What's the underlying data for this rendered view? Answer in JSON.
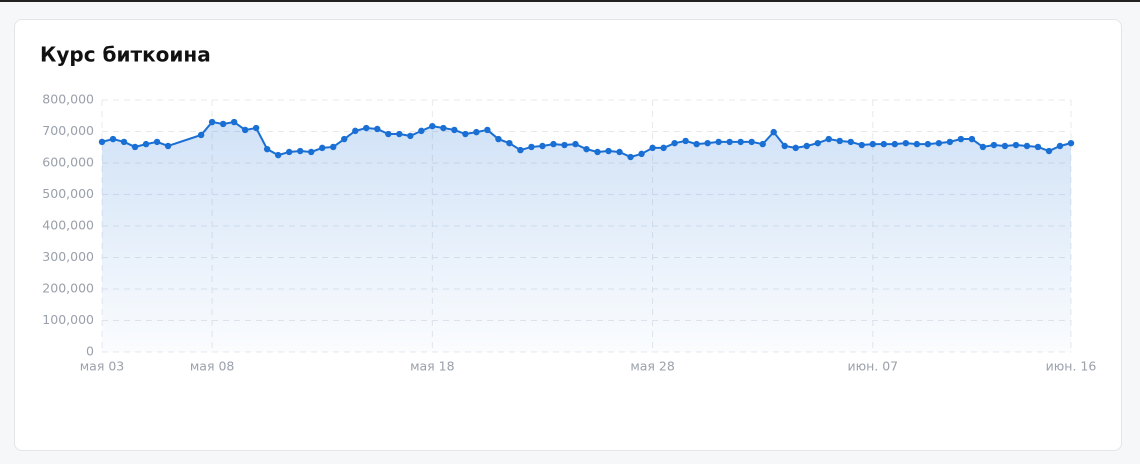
{
  "chart_data": {
    "type": "line",
    "title": "Курс биткоина",
    "color": "#1a6fd4",
    "grid": true,
    "area": true,
    "x": [
      0,
      0.5,
      1,
      1.5,
      2,
      2.5,
      3,
      4.5,
      5,
      5.5,
      6,
      6.5,
      7,
      7.5,
      8,
      8.5,
      9,
      9.5,
      10,
      10.5,
      11,
      11.5,
      12,
      12.5,
      13,
      13.5,
      14,
      14.5,
      15,
      15.5,
      16,
      16.5,
      17,
      17.5,
      18,
      18.5,
      19,
      19.5,
      20,
      20.5,
      21,
      21.5,
      22,
      22.5,
      23,
      23.5,
      24,
      24.5,
      25,
      25.5,
      26,
      26.5,
      27,
      27.5,
      28,
      28.5,
      29,
      29.5,
      30,
      30.5,
      31,
      31.5,
      32,
      32.5,
      33,
      33.5,
      34,
      34.5,
      35,
      35.5,
      36,
      36.5,
      37,
      37.5,
      38,
      38.5,
      39,
      39.5,
      40,
      40.5,
      41,
      41.5,
      42,
      42.5,
      43,
      43.5,
      44
    ],
    "values": [
      667000,
      676000,
      667000,
      651000,
      660000,
      667000,
      654000,
      689000,
      730000,
      724000,
      730000,
      705000,
      711000,
      644000,
      625000,
      635000,
      638000,
      635000,
      648000,
      651000,
      676000,
      702000,
      711000,
      708000,
      692000,
      692000,
      686000,
      702000,
      717000,
      711000,
      705000,
      692000,
      698000,
      705000,
      676000,
      663000,
      641000,
      651000,
      654000,
      660000,
      657000,
      660000,
      644000,
      635000,
      638000,
      635000,
      619000,
      629000,
      648000,
      648000,
      663000,
      670000,
      660000,
      663000,
      667000,
      667000,
      667000,
      667000,
      660000,
      698000,
      654000,
      648000,
      654000,
      663000,
      676000,
      670000,
      667000,
      657000,
      660000,
      660000,
      660000,
      663000,
      660000,
      660000,
      663000,
      667000,
      676000,
      676000,
      651000,
      657000,
      654000,
      657000,
      654000,
      651000,
      638000,
      654000,
      663000
    ],
    "xlim": [
      0,
      44
    ],
    "xticks": [
      {
        "value": 0,
        "label": "мая 03"
      },
      {
        "value": 5,
        "label": "мая 08"
      },
      {
        "value": 15,
        "label": "мая 18"
      },
      {
        "value": 25,
        "label": "мая 28"
      },
      {
        "value": 35,
        "label": "июн. 07"
      },
      {
        "value": 44,
        "label": "июн. 16"
      }
    ],
    "ylim": [
      0,
      800000
    ],
    "yticks": [
      0,
      {
        "value": 100000,
        "label": "100,000"
      },
      {
        "value": 200000,
        "label": "200,000"
      },
      {
        "value": 300000,
        "label": "300,000"
      },
      {
        "value": 400000,
        "label": "400,000"
      },
      {
        "value": 500000,
        "label": "500,000"
      },
      {
        "value": 600000,
        "label": "600,000"
      },
      {
        "value": 700000,
        "label": "700,000"
      },
      {
        "value": 800000,
        "label": "800,000"
      }
    ]
  }
}
